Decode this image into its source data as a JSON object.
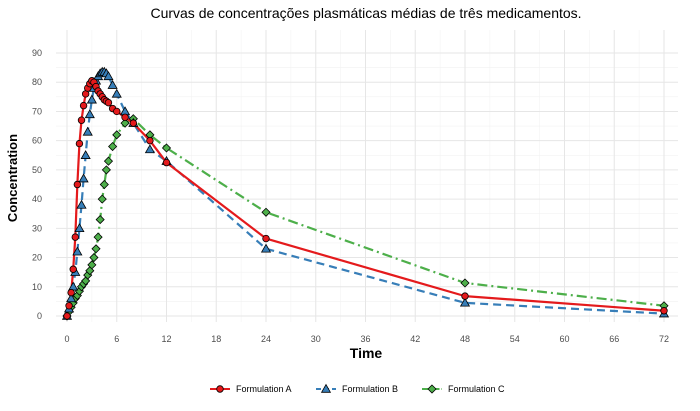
{
  "chart_data": {
    "type": "line",
    "title": "Curvas de concentrações plasmáticas médias de três medicamentos.",
    "xlabel": "Time",
    "ylabel": "Concentration",
    "xlim": [
      0,
      72
    ],
    "ylim": [
      0,
      90
    ],
    "x_ticks": [
      0,
      6,
      12,
      18,
      24,
      30,
      36,
      42,
      48,
      54,
      60,
      66,
      72
    ],
    "y_ticks": [
      0,
      10,
      20,
      30,
      40,
      50,
      60,
      70,
      80,
      90
    ],
    "grid": true,
    "legend_position": "bottom",
    "series": [
      {
        "name": "Formulation A",
        "color": "#e41a1c",
        "marker": "circle",
        "line_style": "solid",
        "x": [
          0,
          0.25,
          0.5,
          0.75,
          1.0,
          1.25,
          1.5,
          1.75,
          2.0,
          2.25,
          2.5,
          2.75,
          3.0,
          3.25,
          3.5,
          3.75,
          4.0,
          4.25,
          4.5,
          4.75,
          5.0,
          5.5,
          6.0,
          7.0,
          8.0,
          10.0,
          12.0,
          24.0,
          48.0,
          72.0
        ],
        "y": [
          0,
          3.5,
          8,
          16,
          27,
          45,
          59,
          67,
          72,
          76,
          78,
          79.5,
          80.5,
          80,
          78.5,
          77,
          76,
          75,
          74,
          73.5,
          73,
          71,
          70,
          68,
          66,
          60,
          52.5,
          26.5,
          6.8,
          1.8
        ]
      },
      {
        "name": "Formulation B",
        "color": "#377eb8",
        "marker": "triangle",
        "line_style": "dashed",
        "x": [
          0,
          0.25,
          0.5,
          0.75,
          1.0,
          1.25,
          1.5,
          1.75,
          2.0,
          2.25,
          2.5,
          2.75,
          3.0,
          3.25,
          3.5,
          3.75,
          4.0,
          4.25,
          4.5,
          4.75,
          5.0,
          5.5,
          6.0,
          7.0,
          8.0,
          10.0,
          12.0,
          24.0,
          48.0,
          72.0
        ],
        "y": [
          0,
          2.5,
          6,
          10,
          15,
          22,
          30,
          38,
          47,
          55,
          63,
          69,
          74,
          78,
          80.5,
          82,
          83,
          83.5,
          83.5,
          83,
          82,
          79,
          76,
          70,
          66,
          57,
          53,
          23,
          4.5,
          0.8
        ]
      },
      {
        "name": "Formulation C",
        "color": "#4daf4a",
        "marker": "diamond",
        "line_style": "dotdash",
        "x": [
          0,
          0.25,
          0.5,
          0.75,
          1.0,
          1.25,
          1.5,
          1.75,
          2.0,
          2.25,
          2.5,
          2.75,
          3.0,
          3.25,
          3.5,
          3.75,
          4.0,
          4.25,
          4.5,
          4.75,
          5.0,
          5.5,
          6.0,
          7.0,
          8.0,
          10.0,
          12.0,
          24.0,
          48.0,
          72.0
        ],
        "y": [
          0,
          1.5,
          3,
          4.5,
          6,
          7,
          8.5,
          10,
          11,
          12,
          14,
          15.5,
          17.5,
          20,
          23,
          27,
          33,
          40,
          45,
          50,
          53,
          58,
          62,
          66,
          67.5,
          62,
          57.5,
          35.5,
          11.3,
          3.5
        ]
      }
    ]
  }
}
